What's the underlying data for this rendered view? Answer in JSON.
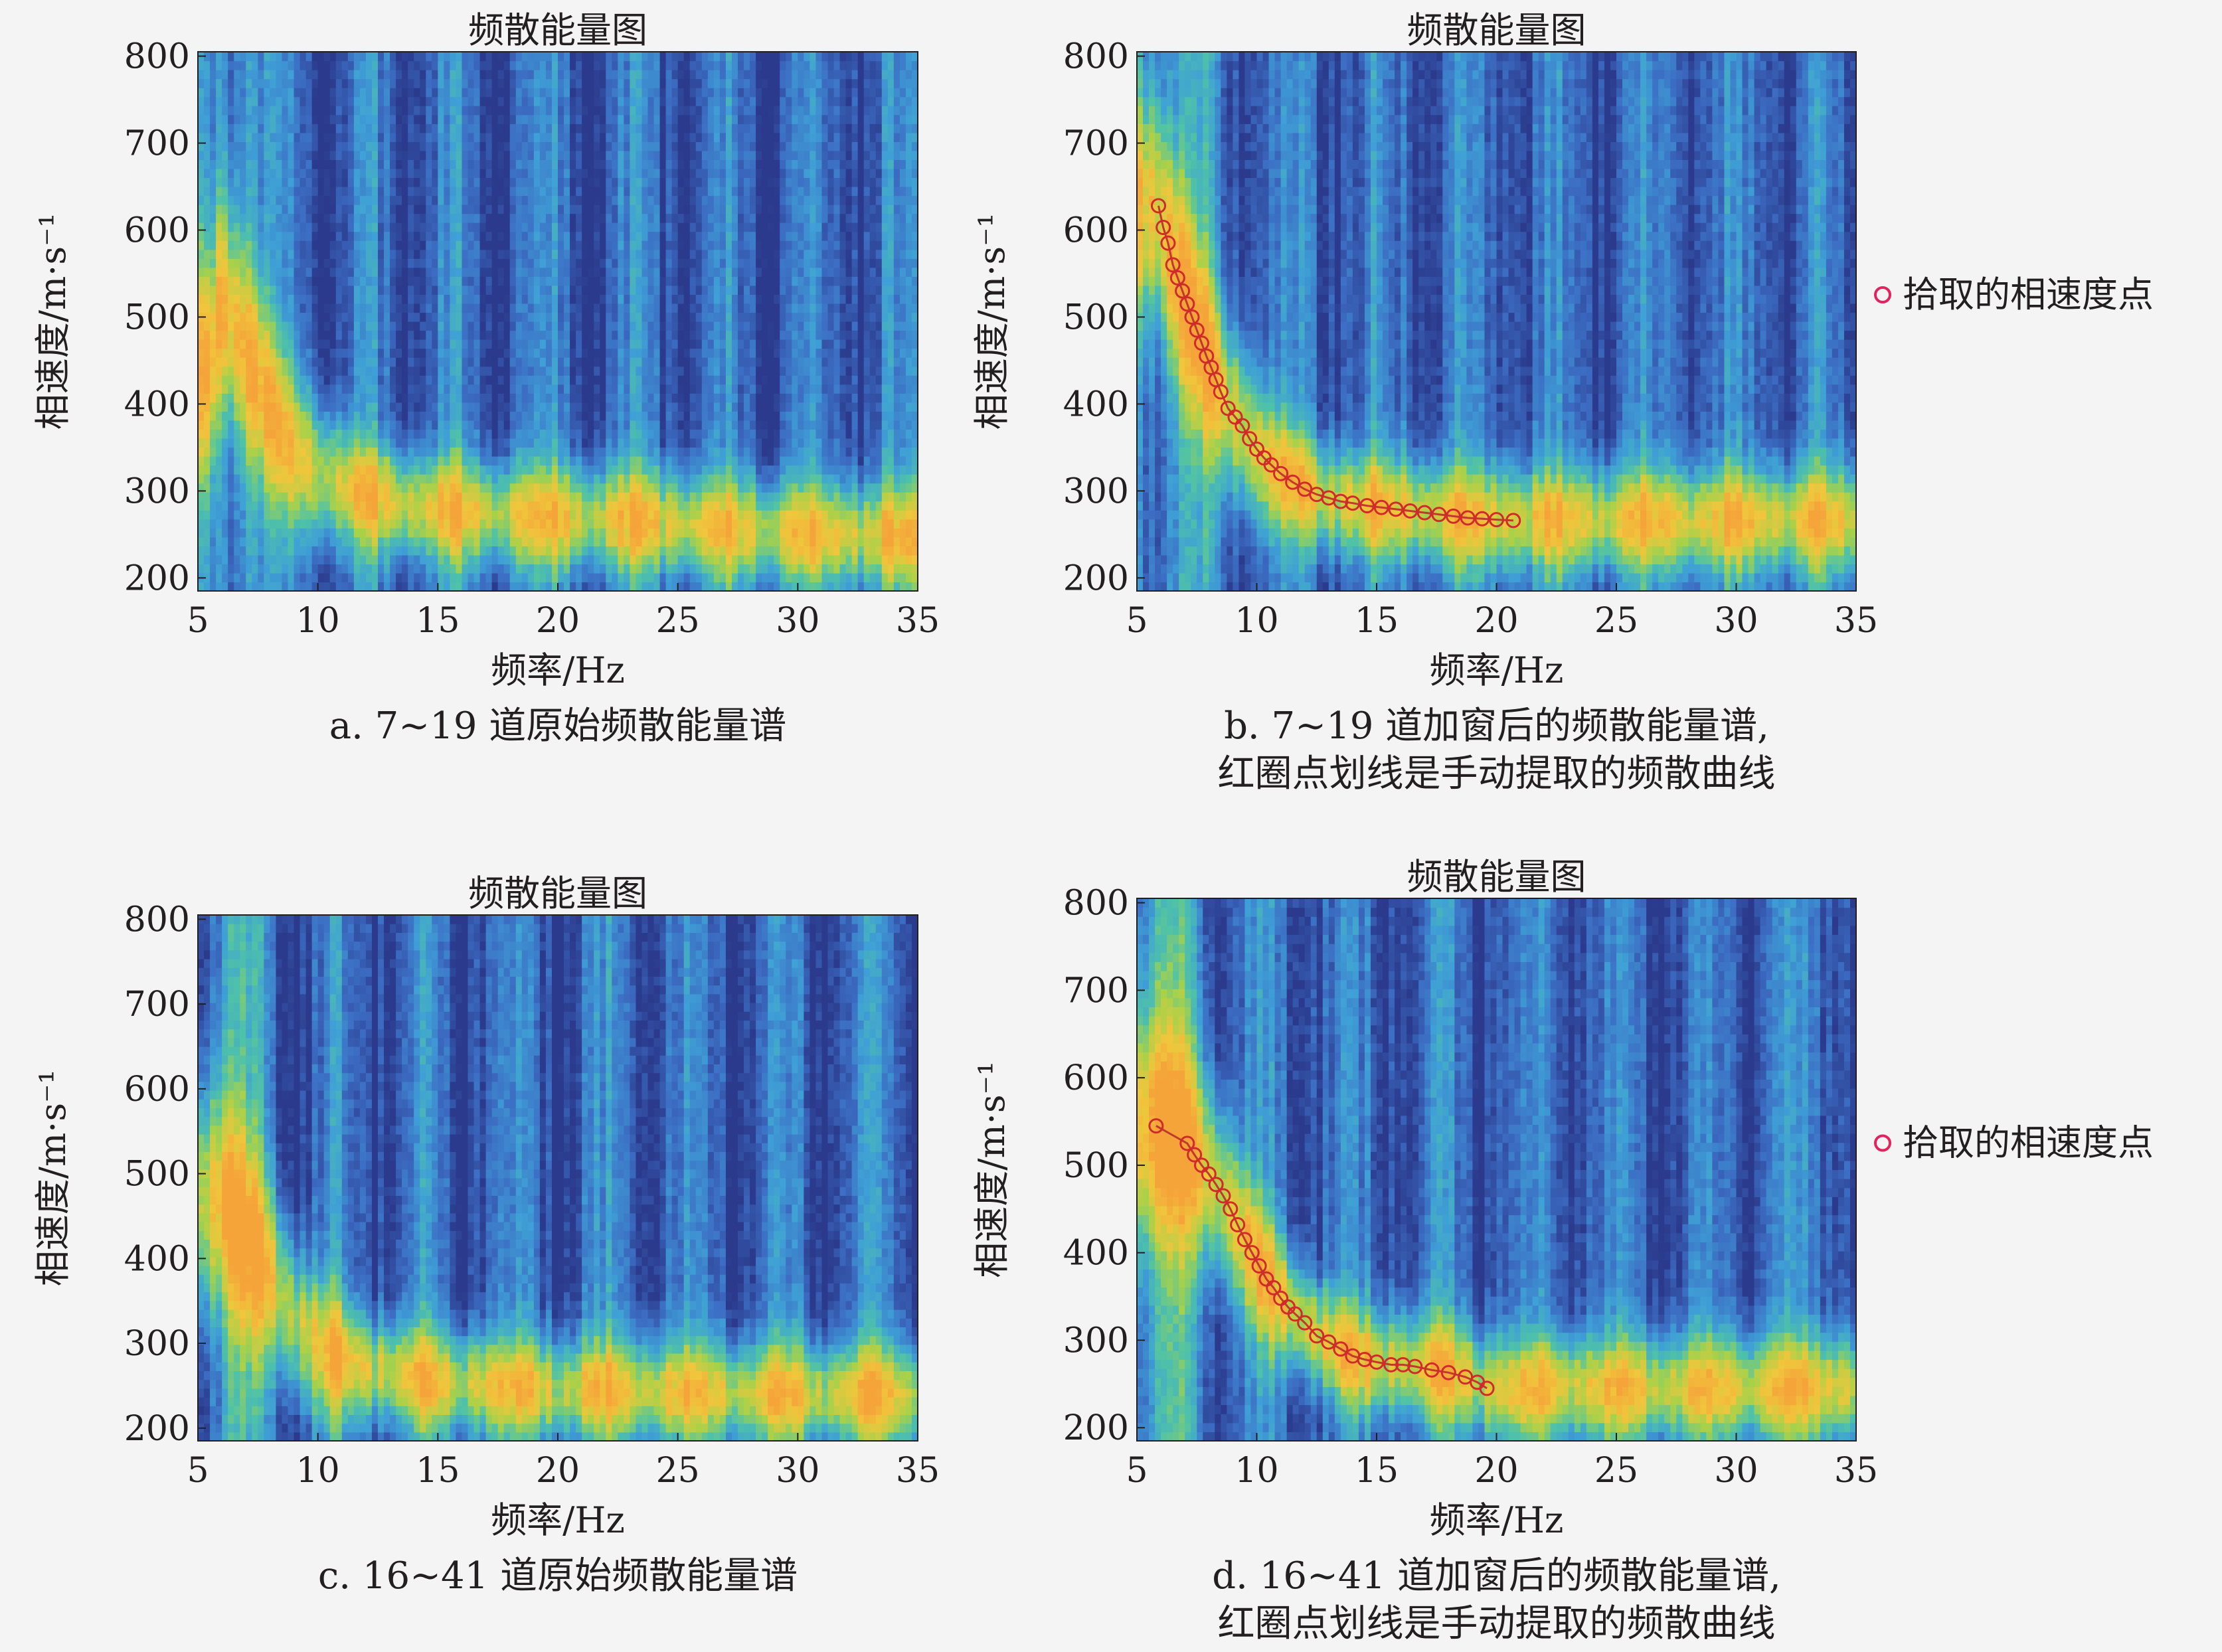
{
  "panels": [
    {
      "id": "a",
      "title": "频散能量图",
      "xlabel": "频率/Hz",
      "ylabel": "相速度/m·s⁻¹",
      "caption": [
        "a. 7~19 道原始频散能量谱"
      ],
      "x_ticks": [
        5,
        10,
        15,
        20,
        25,
        30,
        35
      ],
      "y_ticks": [
        200,
        300,
        400,
        500,
        600,
        700,
        800
      ],
      "legend": null,
      "picks": []
    },
    {
      "id": "b",
      "title": "频散能量图",
      "xlabel": "频率/Hz",
      "ylabel": "相速度/m·s⁻¹",
      "caption": [
        "b. 7~19 道加窗后的频散能量谱,",
        "红圈点划线是手动提取的频散曲线"
      ],
      "x_ticks": [
        5,
        10,
        15,
        20,
        25,
        30,
        35
      ],
      "y_ticks": [
        200,
        300,
        400,
        500,
        600,
        700,
        800
      ],
      "legend": "拾取的相速度点",
      "picks": []
    },
    {
      "id": "c",
      "title": "频散能量图",
      "xlabel": "频率/Hz",
      "ylabel": "相速度/m·s⁻¹",
      "caption": [
        "c. 16~41 道原始频散能量谱"
      ],
      "x_ticks": [
        5,
        10,
        15,
        20,
        25,
        30,
        35
      ],
      "y_ticks": [
        200,
        300,
        400,
        500,
        600,
        700,
        800
      ],
      "legend": null,
      "picks": []
    },
    {
      "id": "d",
      "title": "频散能量图",
      "xlabel": "频率/Hz",
      "ylabel": "相速度/m·s⁻¹",
      "caption": [
        "d. 16~41 道加窗后的频散能量谱,",
        "红圈点划线是手动提取的频散曲线"
      ],
      "x_ticks": [
        5,
        10,
        15,
        20,
        25,
        30,
        35
      ],
      "y_ticks": [
        200,
        300,
        400,
        500,
        600,
        700,
        800
      ],
      "legend": "拾取的相速度点",
      "picks": []
    }
  ],
  "chart_data": [
    {
      "type": "heatmap",
      "title": "频散能量图",
      "xlabel": "频率/Hz",
      "ylabel": "相速度/m·s⁻¹",
      "xlim": [
        5,
        35
      ],
      "ylim": [
        185,
        805
      ],
      "ridge": [
        [
          5.5,
          440
        ],
        [
          6,
          520
        ],
        [
          7,
          460
        ],
        [
          8,
          390
        ],
        [
          9,
          345
        ],
        [
          10,
          320
        ],
        [
          12,
          295
        ],
        [
          14,
          282
        ],
        [
          16,
          276
        ],
        [
          18,
          272
        ],
        [
          20,
          270
        ],
        [
          22,
          268
        ],
        [
          25,
          262
        ],
        [
          28,
          255
        ],
        [
          31,
          250
        ],
        [
          34,
          248
        ]
      ]
    },
    {
      "type": "heatmap",
      "title": "频散能量图",
      "xlabel": "频率/Hz",
      "ylabel": "相速度/m·s⁻¹",
      "xlim": [
        5,
        35
      ],
      "ylim": [
        185,
        805
      ],
      "legend": [
        "拾取的相速度点"
      ],
      "picks": [
        [
          5.9,
          628
        ],
        [
          6.1,
          603
        ],
        [
          6.3,
          585
        ],
        [
          6.5,
          560
        ],
        [
          6.7,
          545
        ],
        [
          6.9,
          530
        ],
        [
          7.1,
          515
        ],
        [
          7.3,
          500
        ],
        [
          7.5,
          485
        ],
        [
          7.7,
          470
        ],
        [
          7.9,
          455
        ],
        [
          8.1,
          442
        ],
        [
          8.3,
          428
        ],
        [
          8.5,
          414
        ],
        [
          8.8,
          395
        ],
        [
          9.1,
          385
        ],
        [
          9.4,
          375
        ],
        [
          9.7,
          360
        ],
        [
          10.0,
          348
        ],
        [
          10.3,
          338
        ],
        [
          10.6,
          330
        ],
        [
          11.0,
          320
        ],
        [
          11.5,
          310
        ],
        [
          12.0,
          302
        ],
        [
          12.5,
          296
        ],
        [
          13.0,
          292
        ],
        [
          13.5,
          288
        ],
        [
          14.0,
          286
        ],
        [
          14.6,
          283
        ],
        [
          15.2,
          281
        ],
        [
          15.8,
          279
        ],
        [
          16.4,
          277
        ],
        [
          17.0,
          275
        ],
        [
          17.6,
          273
        ],
        [
          18.2,
          271
        ],
        [
          18.8,
          269
        ],
        [
          19.4,
          268
        ],
        [
          20.0,
          267
        ],
        [
          20.7,
          266
        ]
      ]
    },
    {
      "type": "heatmap",
      "title": "频散能量图",
      "xlabel": "频率/Hz",
      "ylabel": "相速度/m·s⁻¹",
      "xlim": [
        5,
        35
      ],
      "ylim": [
        185,
        805
      ],
      "ridge": [
        [
          6,
          470
        ],
        [
          8,
          380
        ],
        [
          9,
          330
        ],
        [
          10,
          295
        ],
        [
          12,
          270
        ],
        [
          15,
          255
        ],
        [
          18,
          248
        ],
        [
          20,
          246
        ],
        [
          23,
          244
        ],
        [
          26,
          242
        ],
        [
          30,
          240
        ],
        [
          34,
          238
        ]
      ]
    },
    {
      "type": "heatmap",
      "title": "频散能量图",
      "xlabel": "频率/Hz",
      "ylabel": "相速度/m·s⁻¹",
      "xlim": [
        5,
        35
      ],
      "ylim": [
        185,
        805
      ],
      "legend": [
        "拾取的相速度点"
      ],
      "picks": [
        [
          5.8,
          545
        ],
        [
          7.1,
          525
        ],
        [
          7.4,
          512
        ],
        [
          7.7,
          500
        ],
        [
          8.0,
          490
        ],
        [
          8.3,
          478
        ],
        [
          8.6,
          465
        ],
        [
          8.9,
          450
        ],
        [
          9.2,
          432
        ],
        [
          9.5,
          415
        ],
        [
          9.8,
          400
        ],
        [
          10.1,
          385
        ],
        [
          10.4,
          370
        ],
        [
          10.7,
          360
        ],
        [
          11.0,
          348
        ],
        [
          11.3,
          338
        ],
        [
          11.6,
          330
        ],
        [
          12.0,
          320
        ],
        [
          12.5,
          305
        ],
        [
          13.0,
          298
        ],
        [
          13.5,
          290
        ],
        [
          14.0,
          282
        ],
        [
          14.5,
          278
        ],
        [
          15.0,
          275
        ],
        [
          15.6,
          272
        ],
        [
          16.1,
          272
        ],
        [
          16.6,
          270
        ],
        [
          17.3,
          266
        ],
        [
          18.0,
          263
        ],
        [
          18.7,
          258
        ],
        [
          19.2,
          252
        ],
        [
          19.6,
          245
        ]
      ]
    }
  ],
  "colors": {
    "colormap": [
      "#2b3a8c",
      "#3c6ec4",
      "#3fa0d6",
      "#4fc2a8",
      "#a8d14a",
      "#f0c63c",
      "#f5a43a"
    ],
    "pick_marker": "#d12a2a",
    "pick_line": "#c0392b",
    "legend_marker": "#e0245e"
  }
}
